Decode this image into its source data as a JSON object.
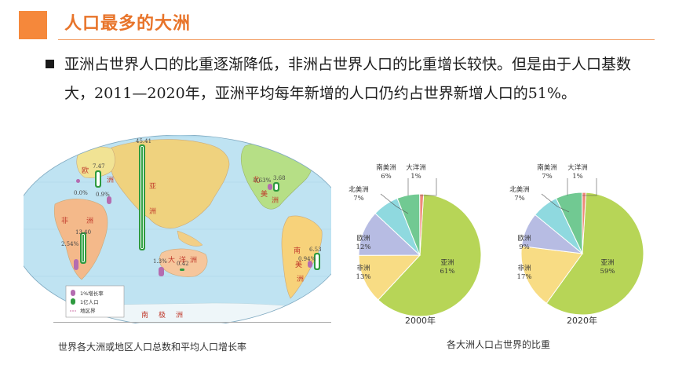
{
  "header": {
    "title": "人口最多的大洲"
  },
  "body": {
    "paragraph": "亚洲占世界人口的比重逐渐降低，非洲占世界人口的比重增长较快。但是由于人口基数大，2011—2020年，亚洲平均每年新增的人口仍约占世界新增人口的51%。"
  },
  "map": {
    "caption": "世界各大洲或地区人口总数和平均人口增长率",
    "value_labels": [
      "45.41",
      "7.47",
      "0.9%",
      "0.0%",
      "13.40",
      "2.54%",
      "0.63%",
      "3.68",
      "1.3%",
      "0.42",
      "0.94%",
      "6.53"
    ],
    "continent_labels": [
      "欧",
      "洲",
      "亚",
      "洲",
      "非",
      "洲",
      "大",
      "洋",
      "洲",
      "北",
      "美",
      "洲",
      "南",
      "美",
      "洲",
      "南",
      "极",
      "洲"
    ],
    "legend": {
      "items": [
        "1%增长率",
        "1亿人口",
        "地区界"
      ]
    }
  },
  "pies": {
    "caption": "各大洲人口占世界的比重",
    "chart_data": [
      {
        "type": "pie",
        "title": "2000年",
        "slices": [
          {
            "name": "亚洲",
            "value": 61,
            "color": "#b7d557"
          },
          {
            "name": "非洲",
            "value": 13,
            "color": "#f8dc84"
          },
          {
            "name": "欧洲",
            "value": 12,
            "color": "#b7bce3"
          },
          {
            "name": "北美洲",
            "value": 7,
            "color": "#8fd9df"
          },
          {
            "name": "南美洲",
            "value": 6,
            "color": "#71c992"
          },
          {
            "name": "大洋洲",
            "value": 1,
            "color": "#ef8a7a"
          }
        ]
      },
      {
        "type": "pie",
        "title": "2020年",
        "slices": [
          {
            "name": "亚洲",
            "value": 59,
            "color": "#b7d557"
          },
          {
            "name": "非洲",
            "value": 17,
            "color": "#f8dc84"
          },
          {
            "name": "欧洲",
            "value": 9,
            "color": "#b7bce3"
          },
          {
            "name": "北美洲",
            "value": 7,
            "color": "#8fd9df"
          },
          {
            "name": "南美洲",
            "value": 7,
            "color": "#71c992"
          },
          {
            "name": "大洋洲",
            "value": 1,
            "color": "#ef8a7a"
          }
        ]
      }
    ]
  }
}
